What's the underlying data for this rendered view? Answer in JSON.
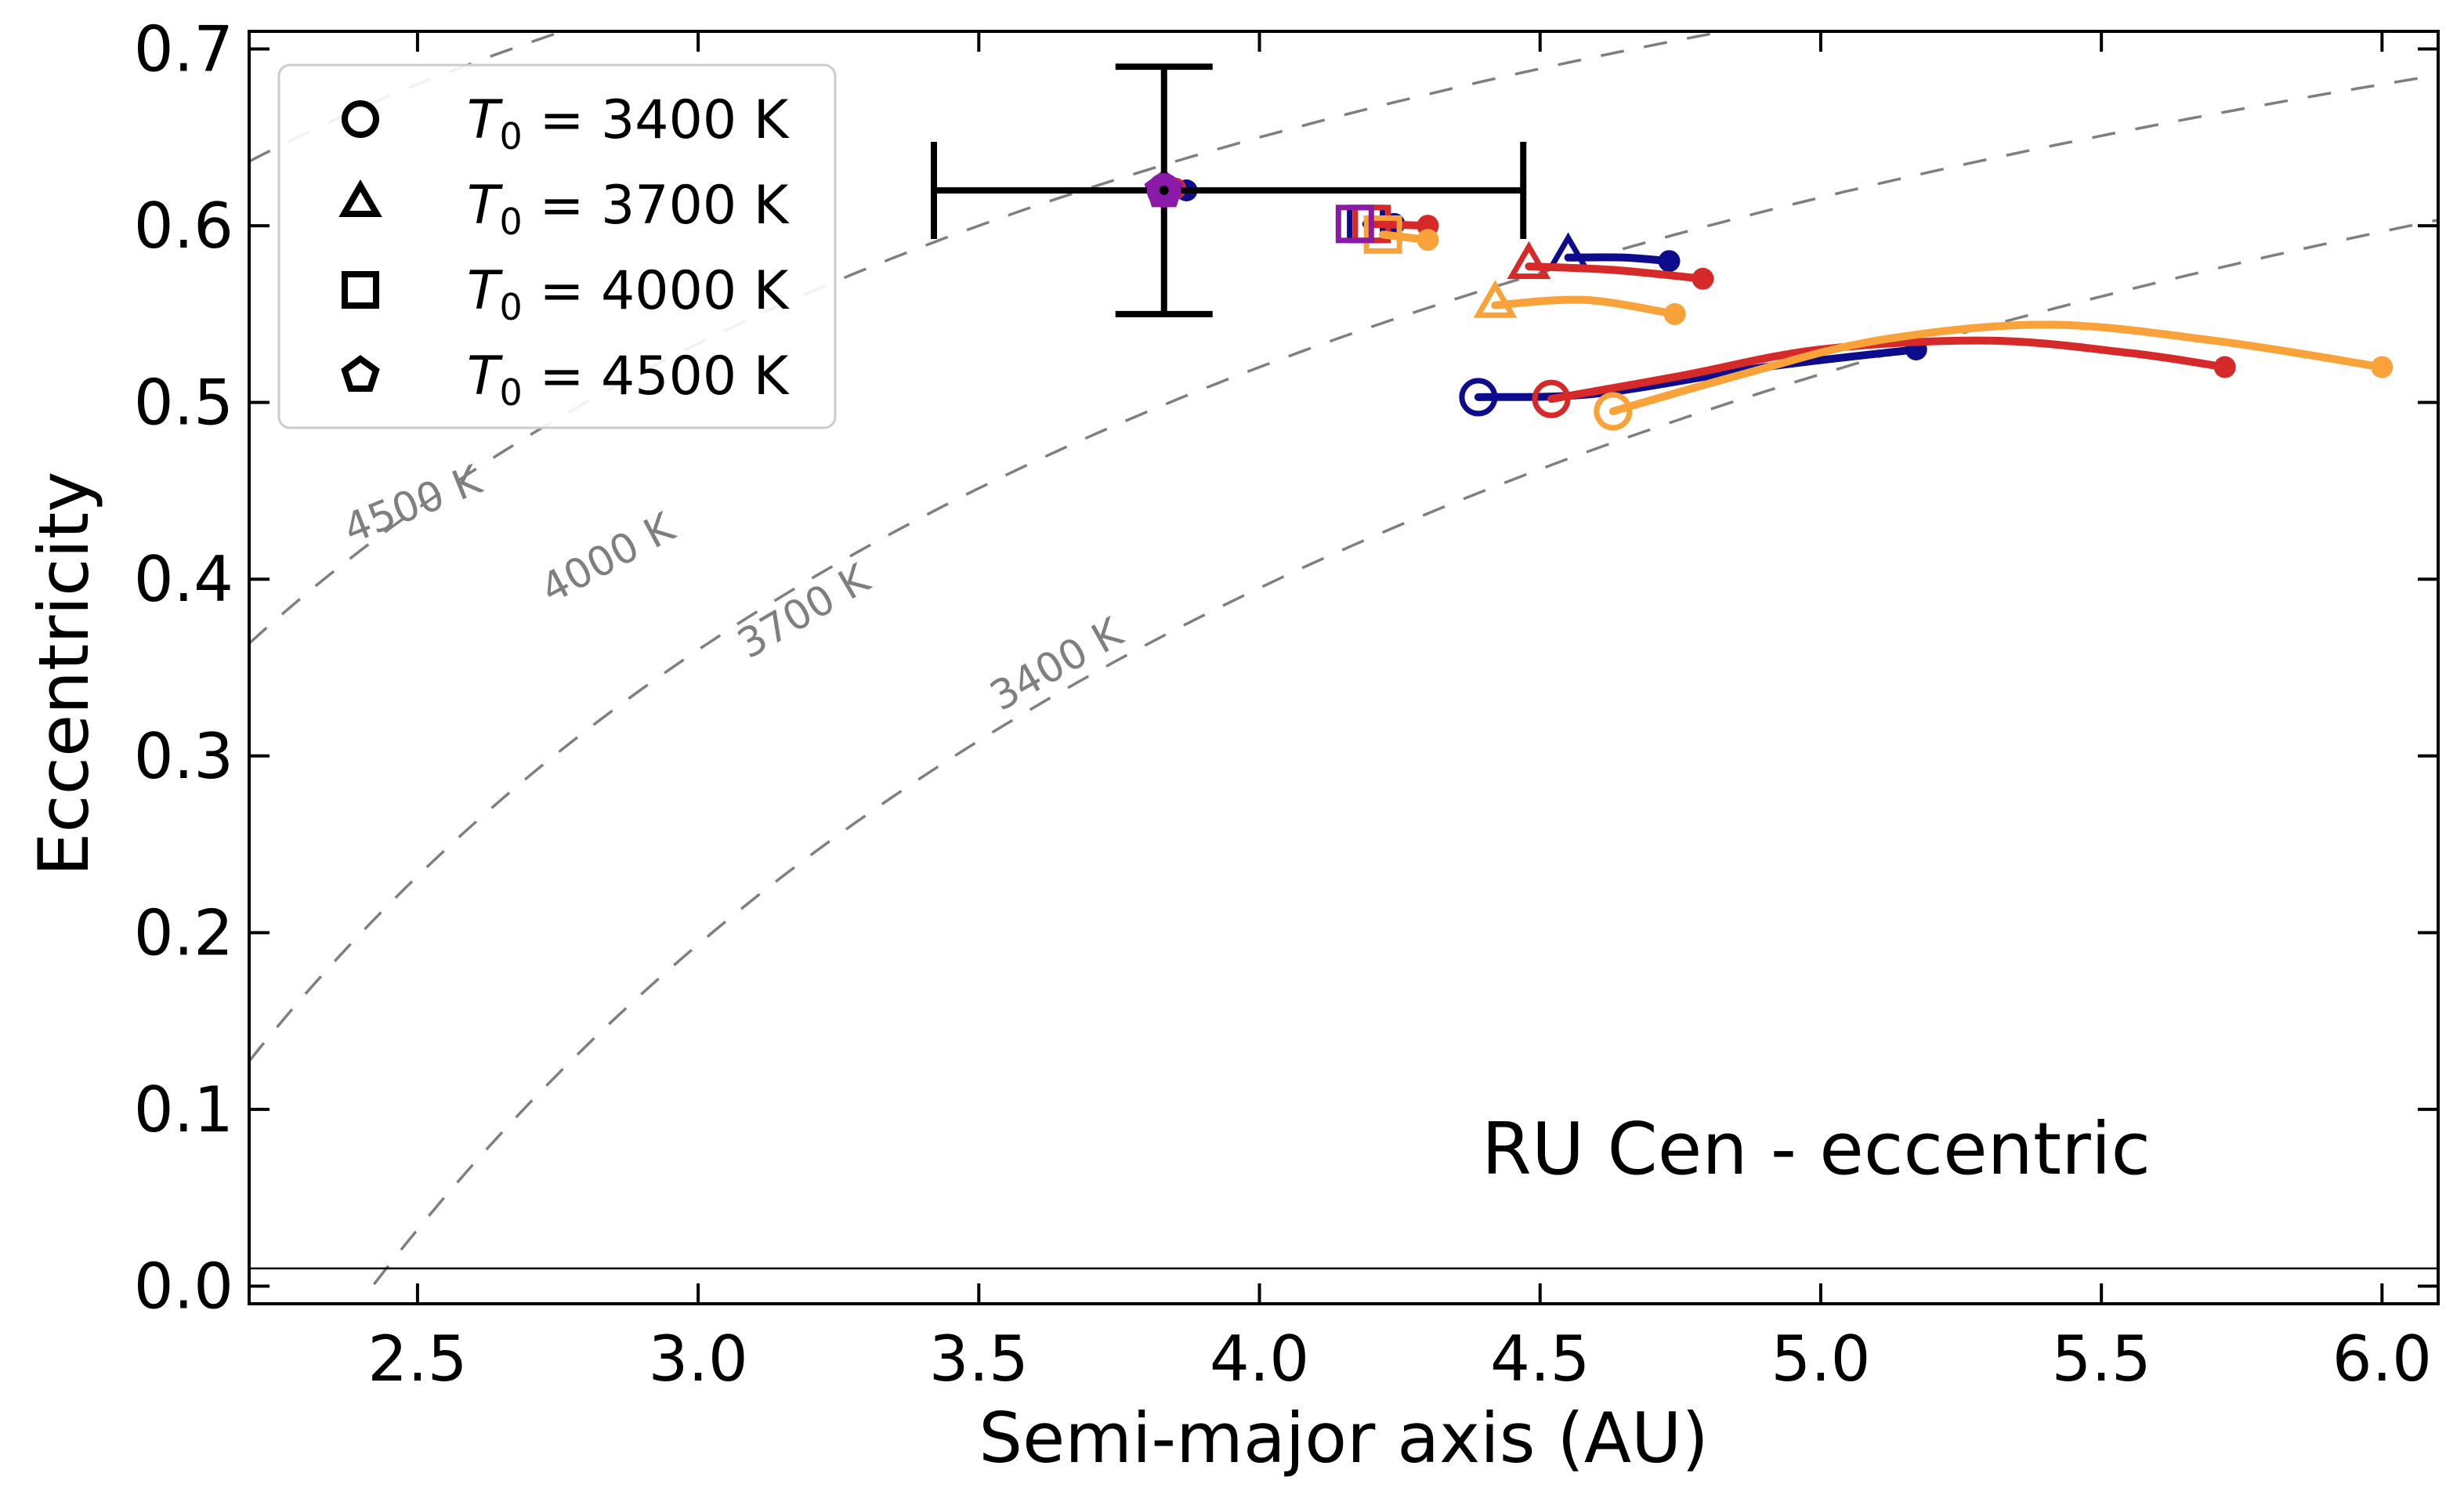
{
  "chart_data": {
    "type": "scatter",
    "xlabel": "Semi-major axis (AU)",
    "ylabel": "Eccentricity",
    "xlim": [
      2.2,
      6.1
    ],
    "ylim": [
      -0.01,
      0.71
    ],
    "xticks": [
      2.5,
      3.0,
      3.5,
      4.0,
      4.5,
      5.0,
      5.5,
      6.0
    ],
    "xtick_labels": [
      "2.5",
      "3.0",
      "3.5",
      "4.0",
      "4.5",
      "5.0",
      "5.5",
      "6.0"
    ],
    "yticks": [
      0.0,
      0.1,
      0.2,
      0.3,
      0.4,
      0.5,
      0.6,
      0.7
    ],
    "ytick_labels": [
      "0.0",
      "0.1",
      "0.2",
      "0.3",
      "0.4",
      "0.5",
      "0.6",
      "0.7"
    ],
    "grid": false,
    "legend_position": "top-left",
    "annotation": "RU Cen - eccentric",
    "horizontal_line_y": 0.01,
    "legend": [
      {
        "label": "T0 = 3400 K",
        "sub_prefix": "T",
        "sub": "0",
        "rest": " = 3400 K",
        "marker": "circle"
      },
      {
        "label": "T0 = 3700 K",
        "sub_prefix": "T",
        "sub": "0",
        "rest": " = 3700 K",
        "marker": "triangle"
      },
      {
        "label": "T0 = 4000 K",
        "sub_prefix": "T",
        "sub": "0",
        "rest": " = 4000 K",
        "marker": "square"
      },
      {
        "label": "T0 = 4500 K",
        "sub_prefix": "T",
        "sub": "0",
        "rest": " = 4500 K",
        "marker": "pentagon"
      }
    ],
    "observation": {
      "x": 3.83,
      "y": 0.62,
      "x_err": [
        0.41,
        0.64
      ],
      "y_err": [
        0.07,
        0.07
      ],
      "color": "#000000",
      "marker_color": "#8b1aa8"
    },
    "isotherms": [
      {
        "label": "4500 K",
        "a0": 0.8,
        "label_x": 2.5,
        "label_y": 0.435
      },
      {
        "label": "4000 K",
        "a0": 1.4,
        "label_x": 2.85,
        "label_y": 0.405
      },
      {
        "label": "3700 K",
        "a0": 1.92,
        "label_x": 3.2,
        "label_y": 0.375
      },
      {
        "label": "3400 K",
        "a0": 2.42,
        "label_x": 3.65,
        "label_y": 0.345
      }
    ],
    "tracks": [
      {
        "temp": "3400 K",
        "marker": "circle",
        "color": "#0c0c8c",
        "points": [
          [
            4.39,
            0.503
          ],
          [
            4.6,
            0.505
          ],
          [
            4.9,
            0.52
          ],
          [
            5.17,
            0.53
          ]
        ]
      },
      {
        "temp": "3400 K",
        "marker": "circle",
        "color": "#d62a2a",
        "points": [
          [
            4.52,
            0.502
          ],
          [
            4.75,
            0.515
          ],
          [
            5.0,
            0.53
          ],
          [
            5.3,
            0.535
          ],
          [
            5.55,
            0.528
          ],
          [
            5.72,
            0.52
          ]
        ]
      },
      {
        "temp": "3400 K",
        "marker": "circle",
        "color": "#f9a23a",
        "points": [
          [
            4.63,
            0.495
          ],
          [
            4.85,
            0.515
          ],
          [
            5.1,
            0.535
          ],
          [
            5.4,
            0.544
          ],
          [
            5.7,
            0.535
          ],
          [
            6.0,
            0.52
          ]
        ]
      },
      {
        "temp": "3700 K",
        "marker": "triangle",
        "color": "#0c0c8c",
        "points": [
          [
            4.55,
            0.582
          ],
          [
            4.65,
            0.582
          ],
          [
            4.73,
            0.58
          ]
        ]
      },
      {
        "temp": "3700 K",
        "marker": "triangle",
        "color": "#d62a2a",
        "points": [
          [
            4.48,
            0.577
          ],
          [
            4.63,
            0.575
          ],
          [
            4.79,
            0.57
          ]
        ]
      },
      {
        "temp": "3700 K",
        "marker": "triangle",
        "color": "#f9a23a",
        "points": [
          [
            4.42,
            0.555
          ],
          [
            4.58,
            0.558
          ],
          [
            4.74,
            0.55
          ]
        ]
      },
      {
        "temp": "4000 K",
        "marker": "square",
        "color": "#0c0c8c",
        "points": [
          [
            4.19,
            0.601
          ],
          [
            4.24,
            0.601
          ]
        ]
      },
      {
        "temp": "4000 K",
        "marker": "square",
        "color": "#d62a2a",
        "points": [
          [
            4.2,
            0.601
          ],
          [
            4.3,
            0.6
          ]
        ]
      },
      {
        "temp": "4000 K",
        "marker": "square",
        "color": "#f9a23a",
        "points": [
          [
            4.22,
            0.595
          ],
          [
            4.3,
            0.592
          ]
        ]
      },
      {
        "temp": "4000 K",
        "marker": "square",
        "color": "#8b1aa8",
        "points": [
          [
            4.17,
            0.601
          ]
        ]
      },
      {
        "temp": "4500 K",
        "marker": "pentagon",
        "color": "#0c0c8c",
        "points": [
          [
            3.83,
            0.62
          ],
          [
            3.87,
            0.62
          ]
        ]
      },
      {
        "temp": "4500 K",
        "marker": "pentagon",
        "color": "#d62a2a",
        "points": [
          [
            3.83,
            0.62
          ],
          [
            3.85,
            0.621
          ]
        ]
      },
      {
        "temp": "4500 K",
        "marker": "pentagon",
        "color": "#f9a23a",
        "points": [
          [
            3.83,
            0.62
          ],
          [
            3.84,
            0.621
          ]
        ]
      },
      {
        "temp": "4500 K",
        "marker": "pentagon",
        "color": "#8b1aa8",
        "points": [
          [
            3.83,
            0.62
          ]
        ]
      }
    ]
  }
}
